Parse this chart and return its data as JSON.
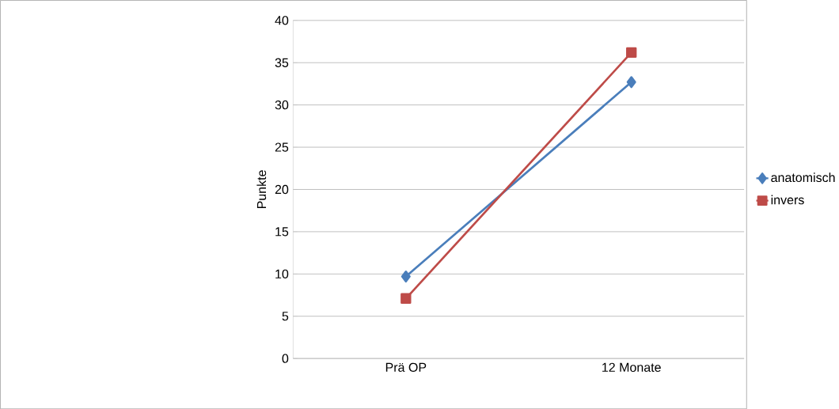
{
  "chart_data": {
    "type": "line",
    "ylabel": "Punkte",
    "categories": [
      "Prä OP",
      "12 Monate"
    ],
    "series": [
      {
        "name": "anatomisch",
        "color": "#4a7ebb",
        "marker": "diamond",
        "values": [
          9.7,
          32.7
        ]
      },
      {
        "name": "invers",
        "color": "#be4b48",
        "marker": "square",
        "values": [
          7.1,
          36.2
        ]
      }
    ],
    "ylim": [
      0,
      40
    ],
    "yticks": [
      0,
      5,
      10,
      15,
      20,
      25,
      30,
      35,
      40
    ],
    "grid": "y",
    "legend": "right",
    "line_style": "solid"
  }
}
